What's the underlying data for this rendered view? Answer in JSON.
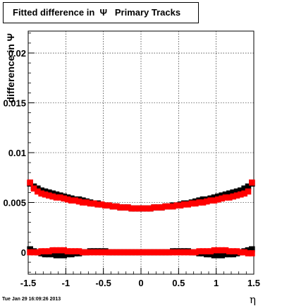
{
  "chart_data": {
    "type": "scatter",
    "title": "Fitted difference in  Ψ   Primary Tracks",
    "xlabel": "η",
    "ylabel": "difference in Ψ",
    "xlim": [
      -1.5,
      1.5
    ],
    "ylim": [
      -0.0022,
      0.0222
    ],
    "x_ticks": [
      -1.5,
      -1,
      -0.5,
      0,
      0.5,
      1,
      1.5
    ],
    "x_tick_labels": [
      "-1.5",
      "-1",
      "-0.5",
      "0",
      "0.5",
      "1",
      "1.5"
    ],
    "y_ticks": [
      0,
      0.005,
      0.01,
      0.015,
      0.02
    ],
    "y_tick_labels": [
      "0",
      "0.005",
      "0.01",
      "0.015",
      "0.02"
    ],
    "grid": true,
    "series": [
      {
        "color": "#000000",
        "marker": "square",
        "x": [
          -1.475,
          -1.425,
          -1.375,
          -1.325,
          -1.275,
          -1.225,
          -1.175,
          -1.125,
          -1.075,
          -1.025,
          -0.975,
          -0.925,
          -0.875,
          -0.825,
          -0.775,
          -0.725,
          -0.675,
          -0.625,
          -0.575,
          -0.525,
          -0.475,
          -0.425,
          -0.375,
          -0.325,
          -0.275,
          -0.225,
          -0.175,
          -0.125,
          -0.075,
          -0.025,
          0.025,
          0.075,
          0.125,
          0.175,
          0.225,
          0.275,
          0.325,
          0.375,
          0.425,
          0.475,
          0.525,
          0.575,
          0.625,
          0.675,
          0.725,
          0.775,
          0.825,
          0.875,
          0.925,
          0.975,
          1.025,
          1.075,
          1.125,
          1.175,
          1.225,
          1.275,
          1.325,
          1.375,
          1.425,
          1.475
        ],
        "y": [
          0.0069,
          0.0066,
          0.0064,
          0.0062,
          0.0061,
          0.006,
          0.0059,
          0.0058,
          0.0057,
          0.0056,
          0.0055,
          0.0054,
          0.0053,
          0.0053,
          0.0052,
          0.0051,
          0.005,
          0.0049,
          0.0049,
          0.0048,
          0.0047,
          0.0047,
          0.0046,
          0.0046,
          0.0045,
          0.0045,
          0.0045,
          0.0044,
          0.0044,
          0.0044,
          0.0044,
          0.0044,
          0.0044,
          0.0045,
          0.0045,
          0.0045,
          0.0046,
          0.0046,
          0.0047,
          0.0047,
          0.0048,
          0.0049,
          0.0049,
          0.005,
          0.0051,
          0.0052,
          0.0053,
          0.0053,
          0.0054,
          0.0055,
          0.0056,
          0.0057,
          0.0058,
          0.0059,
          0.006,
          0.0061,
          0.0062,
          0.0064,
          0.0066,
          0.0069
        ]
      },
      {
        "color": "#ff0000",
        "marker": "square",
        "x": [
          -1.475,
          -1.425,
          -1.375,
          -1.325,
          -1.275,
          -1.225,
          -1.175,
          -1.125,
          -1.075,
          -1.025,
          -0.975,
          -0.925,
          -0.875,
          -0.825,
          -0.775,
          -0.725,
          -0.675,
          -0.625,
          -0.575,
          -0.525,
          -0.475,
          -0.425,
          -0.375,
          -0.325,
          -0.275,
          -0.225,
          -0.175,
          -0.125,
          -0.075,
          -0.025,
          0.025,
          0.075,
          0.125,
          0.175,
          0.225,
          0.275,
          0.325,
          0.375,
          0.425,
          0.475,
          0.525,
          0.575,
          0.625,
          0.675,
          0.725,
          0.775,
          0.825,
          0.875,
          0.925,
          0.975,
          1.025,
          1.075,
          1.125,
          1.175,
          1.225,
          1.275,
          1.325,
          1.375,
          1.425,
          1.475
        ],
        "y": [
          0.007,
          0.0064,
          0.0061,
          0.0059,
          0.0058,
          0.0057,
          0.0056,
          0.0055,
          0.0055,
          0.0054,
          0.0053,
          0.0052,
          0.0052,
          0.0051,
          0.005,
          0.005,
          0.0049,
          0.0049,
          0.0048,
          0.0048,
          0.0047,
          0.0047,
          0.0046,
          0.0046,
          0.0045,
          0.0045,
          0.0045,
          0.0044,
          0.0044,
          0.0044,
          0.0044,
          0.0044,
          0.0044,
          0.0045,
          0.0045,
          0.0045,
          0.0046,
          0.0046,
          0.0046,
          0.0047,
          0.0047,
          0.0048,
          0.0048,
          0.0049,
          0.0049,
          0.005,
          0.005,
          0.0051,
          0.0052,
          0.0052,
          0.0053,
          0.0054,
          0.0055,
          0.0055,
          0.0056,
          0.0057,
          0.0058,
          0.0059,
          0.0061,
          0.007
        ]
      },
      {
        "color": "#000000",
        "marker": "square",
        "x": [
          -1.475,
          -1.425,
          -1.375,
          -1.325,
          -1.275,
          -1.225,
          -1.175,
          -1.125,
          -1.075,
          -1.025,
          -0.975,
          -0.925,
          -0.875,
          -0.825,
          -0.775,
          -0.725,
          -0.675,
          -0.625,
          -0.575,
          -0.525,
          -0.475,
          -0.425,
          -0.375,
          -0.325,
          -0.275,
          -0.225,
          -0.175,
          -0.125,
          -0.075,
          -0.025,
          0.025,
          0.075,
          0.125,
          0.175,
          0.225,
          0.275,
          0.325,
          0.375,
          0.425,
          0.475,
          0.525,
          0.575,
          0.625,
          0.675,
          0.725,
          0.775,
          0.825,
          0.875,
          0.925,
          0.975,
          1.025,
          1.075,
          1.125,
          1.175,
          1.225,
          1.275,
          1.325,
          1.375,
          1.425,
          1.475
        ],
        "y": [
          0.0003,
          0.0001,
          0.0,
          -0.0001,
          -0.0002,
          -0.0002,
          -0.0002,
          -0.0003,
          -0.0003,
          -0.0003,
          -0.0002,
          -0.0002,
          -0.0001,
          -0.0001,
          0.0,
          0.0,
          0.0001,
          0.0001,
          0.0001,
          0.0001,
          0.0001,
          0.0,
          0.0,
          0.0,
          0.0,
          0.0,
          0.0,
          0.0,
          0.0,
          0.0,
          0.0,
          0.0,
          0.0,
          0.0,
          0.0,
          0.0,
          0.0,
          0.0,
          0.0001,
          0.0001,
          0.0001,
          0.0001,
          0.0001,
          0.0,
          0.0,
          -0.0001,
          -0.0001,
          -0.0002,
          -0.0002,
          -0.0003,
          -0.0003,
          -0.0003,
          -0.0002,
          -0.0002,
          -0.0002,
          -0.0001,
          0.0,
          0.0001,
          0.0002,
          0.0003
        ]
      },
      {
        "color": "#ff0000",
        "marker": "square",
        "x": [
          -1.475,
          -1.425,
          -1.375,
          -1.325,
          -1.275,
          -1.225,
          -1.175,
          -1.125,
          -1.075,
          -1.025,
          -0.975,
          -0.925,
          -0.875,
          -0.825,
          -0.775,
          -0.725,
          -0.675,
          -0.625,
          -0.575,
          -0.525,
          -0.475,
          -0.425,
          -0.375,
          -0.325,
          -0.275,
          -0.225,
          -0.175,
          -0.125,
          -0.075,
          -0.025,
          0.025,
          0.075,
          0.125,
          0.175,
          0.225,
          0.275,
          0.325,
          0.375,
          0.425,
          0.475,
          0.525,
          0.575,
          0.625,
          0.675,
          0.725,
          0.775,
          0.825,
          0.875,
          0.925,
          0.975,
          1.025,
          1.075,
          1.125,
          1.175,
          1.225,
          1.275,
          1.325,
          1.375,
          1.425,
          1.475
        ],
        "y": [
          0.0,
          0.0,
          0.0,
          0.0001,
          0.0001,
          0.0001,
          0.0002,
          0.0002,
          0.0002,
          0.0002,
          0.0001,
          0.0001,
          0.0001,
          0.0001,
          0.0,
          0.0,
          0.0,
          0.0,
          0.0,
          0.0,
          0.0,
          0.0,
          0.0,
          0.0,
          0.0,
          0.0,
          0.0,
          0.0,
          0.0,
          0.0,
          0.0,
          0.0,
          0.0,
          0.0,
          0.0,
          0.0,
          0.0,
          0.0,
          0.0,
          0.0,
          0.0,
          0.0,
          0.0,
          0.0,
          0.0,
          0.0001,
          0.0001,
          0.0001,
          0.0001,
          0.0002,
          0.0002,
          0.0002,
          0.0002,
          0.0001,
          0.0001,
          0.0001,
          0.0,
          0.0,
          -0.0001,
          -0.0001
        ]
      }
    ]
  },
  "timestamp": "Tue Jan 29 16:09:26 2013"
}
